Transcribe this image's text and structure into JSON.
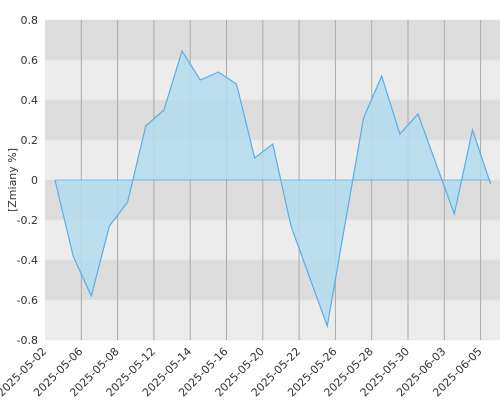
{
  "chart_data": {
    "type": "area",
    "y_label": "[Zmiany %]",
    "categories": [
      "2025-05-02",
      null,
      "2025-05-06",
      null,
      "2025-05-08",
      null,
      "2025-05-12",
      null,
      "2025-05-14",
      null,
      "2025-05-16",
      null,
      "2025-05-20",
      null,
      "2025-05-22",
      null,
      "2025-05-26",
      null,
      "2025-05-28",
      null,
      "2025-05-30",
      null,
      "2025-06-03",
      null,
      "2025-06-05"
    ],
    "values": [
      0,
      -0.38,
      -0.58,
      -0.23,
      -0.11,
      0.27,
      0.35,
      0.645,
      0.5,
      0.54,
      0.48,
      0.11,
      0.18,
      -0.23,
      -0.48,
      -0.73,
      -0.21,
      0.31,
      0.52,
      0.23,
      0.33,
      0.08,
      -0.17,
      0.25,
      -0.02
    ],
    "color": "#5aaee8",
    "fill": "#b3dcef",
    "ylim": [
      -0.8,
      0.8
    ],
    "yticks": [
      -0.8,
      -0.6,
      -0.4,
      -0.2,
      0,
      0.2,
      0.4,
      0.6,
      0.8
    ],
    "grid": true
  }
}
